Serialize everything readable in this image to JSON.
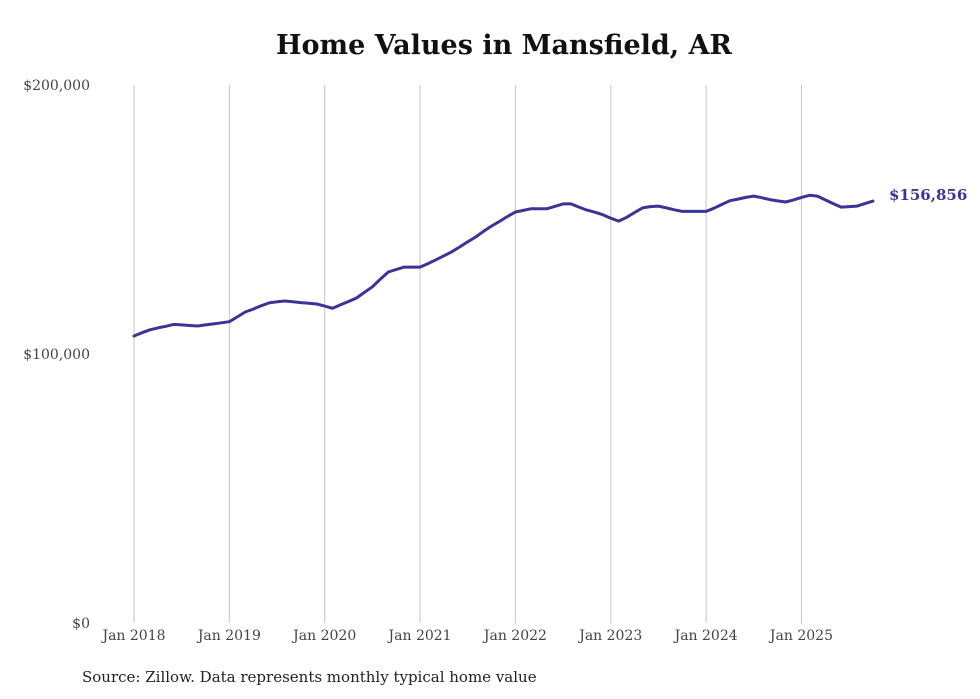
{
  "chart_data": {
    "type": "line",
    "title": "Home Values in Mansfield, AR",
    "source": "Source: Zillow. Data represents monthly typical home value",
    "xlabel": "",
    "ylabel": "",
    "ylim": [
      0,
      200000
    ],
    "y_ticks": [
      0,
      100000,
      200000
    ],
    "y_tick_labels": [
      "$0",
      "$100,000",
      "$200,000"
    ],
    "x_tick_labels": [
      "Jan 2018",
      "Jan 2019",
      "Jan 2020",
      "Jan 2021",
      "Jan 2022",
      "Jan 2023",
      "Jan 2024",
      "Jan 2025"
    ],
    "x_start": "Jan 2018",
    "x_end": "Oct 2025",
    "grid": "vertical at each January",
    "line_color": "#3b3497",
    "end_label": "$156,856",
    "series": [
      {
        "name": "Typical home value",
        "frequency": "monthly",
        "values": [
          106700,
          107900,
          109000,
          109700,
          110300,
          111000,
          110800,
          110600,
          110400,
          110800,
          111200,
          111600,
          112000,
          113800,
          115600,
          116700,
          117900,
          119000,
          119400,
          119700,
          119400,
          119100,
          118900,
          118600,
          117800,
          117000,
          118300,
          119500,
          120800,
          122900,
          125000,
          127800,
          130500,
          131400,
          132300,
          132300,
          132300,
          133600,
          135000,
          136500,
          138000,
          139800,
          141700,
          143500,
          145600,
          147600,
          149300,
          151100,
          152800,
          153400,
          154000,
          154000,
          154000,
          154900,
          155800,
          155800,
          154600,
          153500,
          152700,
          151800,
          150500,
          149400,
          150800,
          152600,
          154300,
          154800,
          155000,
          154300,
          153600,
          153000,
          153000,
          153000,
          153000,
          154200,
          155600,
          157000,
          157600,
          158200,
          158700,
          158100,
          157400,
          156900,
          156500,
          157300,
          158200,
          159000,
          158700,
          157300,
          155900,
          154600,
          154800,
          155000,
          155900,
          156856
        ]
      }
    ]
  }
}
